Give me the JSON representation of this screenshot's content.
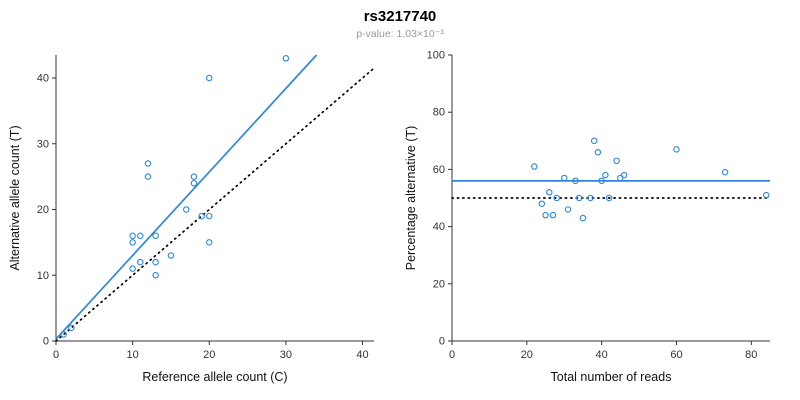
{
  "header": {
    "title": "rs3217740",
    "subtitle": "p-value: 1.03×10⁻³"
  },
  "colors": {
    "accent": "#2E86DE",
    "identity": "#000000",
    "axis": "#333333",
    "subtitle_text": "#999999"
  },
  "chart_data": [
    {
      "type": "scatter",
      "name": "allele-counts",
      "xlabel": "Reference allele count (C)",
      "ylabel": "Alternative allele count (T)",
      "xlim": [
        0,
        41.5
      ],
      "ylim": [
        0,
        43.5
      ],
      "xticks": [
        0,
        10,
        20,
        30,
        40
      ],
      "yticks": [
        0,
        10,
        20,
        30,
        40
      ],
      "points": [
        [
          1,
          1
        ],
        [
          2,
          2
        ],
        [
          10,
          11
        ],
        [
          10,
          15
        ],
        [
          10,
          16
        ],
        [
          11,
          16
        ],
        [
          11,
          12
        ],
        [
          12,
          25
        ],
        [
          12,
          27
        ],
        [
          13,
          10
        ],
        [
          13,
          12
        ],
        [
          13,
          16
        ],
        [
          15,
          13
        ],
        [
          17,
          20
        ],
        [
          18,
          24
        ],
        [
          18,
          25
        ],
        [
          19,
          19
        ],
        [
          20,
          15
        ],
        [
          20,
          19
        ],
        [
          20,
          40
        ],
        [
          30,
          43
        ]
      ],
      "lines": [
        {
          "name": "regression-fit",
          "x": [
            0,
            34
          ],
          "y": [
            0.3,
            43.5
          ],
          "color_key": "accent",
          "dashed": false
        },
        {
          "name": "identity-line",
          "x": [
            0,
            41.5
          ],
          "y": [
            0,
            41.5
          ],
          "color_key": "identity",
          "dashed": true
        }
      ]
    },
    {
      "type": "scatter",
      "name": "percentage-vs-reads",
      "xlabel": "Total number of reads",
      "ylabel": "Percentage alternative (T)",
      "xlim": [
        0,
        85
      ],
      "ylim": [
        0,
        100
      ],
      "xticks": [
        0,
        20,
        40,
        60,
        80
      ],
      "yticks": [
        0,
        20,
        40,
        60,
        80,
        100
      ],
      "points": [
        [
          22,
          61
        ],
        [
          24,
          48
        ],
        [
          25,
          44
        ],
        [
          26,
          52
        ],
        [
          27,
          44
        ],
        [
          28,
          50
        ],
        [
          30,
          57
        ],
        [
          31,
          46
        ],
        [
          33,
          56
        ],
        [
          34,
          50
        ],
        [
          35,
          43
        ],
        [
          37,
          50
        ],
        [
          38,
          70
        ],
        [
          39,
          66
        ],
        [
          40,
          56
        ],
        [
          41,
          58
        ],
        [
          42,
          50
        ],
        [
          44,
          63
        ],
        [
          45,
          57
        ],
        [
          46,
          58
        ],
        [
          60,
          67
        ],
        [
          73,
          59
        ],
        [
          84,
          51
        ]
      ],
      "lines": [
        {
          "name": "mean-percentage-line",
          "x": [
            0,
            85
          ],
          "y": [
            56,
            56
          ],
          "color_key": "accent",
          "dashed": false
        },
        {
          "name": "reference-50-line",
          "x": [
            0,
            85
          ],
          "y": [
            50,
            50
          ],
          "color_key": "identity",
          "dashed": true
        }
      ]
    }
  ]
}
